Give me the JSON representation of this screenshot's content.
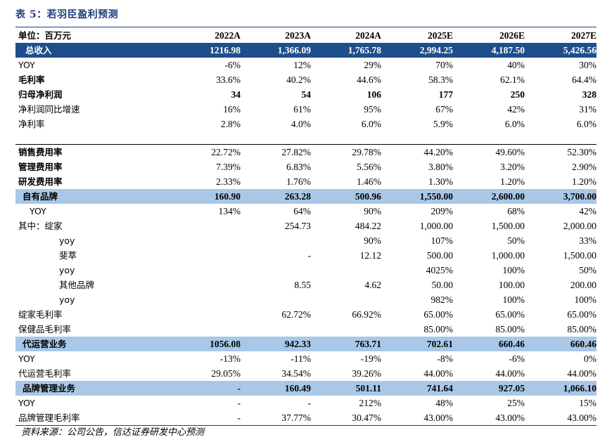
{
  "title": "表 5：若羽臣盈利预测",
  "source": "资料来源：公司公告，信达证券研发中心预测",
  "table": {
    "unit_label": "单位：百万元",
    "columns": [
      "2022A",
      "2023A",
      "2024A",
      "2025E",
      "2026E",
      "2027E"
    ],
    "rows": [
      {
        "style": "dark",
        "indent": 0,
        "label": "总收入",
        "values": [
          "1216.98",
          "1,366.09",
          "1,765.78",
          "2,994.25",
          "4,187.50",
          "5,426.56"
        ]
      },
      {
        "style": "normal",
        "indent": 0,
        "label": "YOY",
        "values": [
          "-6%",
          "12%",
          "29%",
          "70%",
          "40%",
          "30%"
        ]
      },
      {
        "style": "boldlabel",
        "indent": 0,
        "label": "毛利率",
        "values": [
          "33.6%",
          "40.2%",
          "44.6%",
          "58.3%",
          "62.1%",
          "64.4%"
        ]
      },
      {
        "style": "bold",
        "indent": 0,
        "label": "归母净利润",
        "values": [
          "34",
          "54",
          "106",
          "177",
          "250",
          "328"
        ]
      },
      {
        "style": "normal",
        "indent": 0,
        "label": "净利润同比增速",
        "values": [
          "16%",
          "61%",
          "95%",
          "67%",
          "42%",
          "31%"
        ]
      },
      {
        "style": "normal",
        "indent": 0,
        "label": "净利率",
        "values": [
          "2.8%",
          "4.0%",
          "6.0%",
          "5.9%",
          "6.0%",
          "6.0%"
        ]
      },
      {
        "style": "blank",
        "indent": 0,
        "label": "",
        "values": [
          "",
          "",
          "",
          "",
          "",
          ""
        ]
      },
      {
        "style": "boldlabel sec-top",
        "indent": 0,
        "label": "销售费用率",
        "values": [
          "22.72%",
          "27.82%",
          "29.78%",
          "44.20%",
          "49.60%",
          "52.30%"
        ]
      },
      {
        "style": "boldlabel",
        "indent": 0,
        "label": "管理费用率",
        "values": [
          "7.39%",
          "6.83%",
          "5.56%",
          "3.80%",
          "3.20%",
          "2.90%"
        ]
      },
      {
        "style": "boldlabel",
        "indent": 0,
        "label": "研发费用率",
        "values": [
          "2.33%",
          "1.76%",
          "1.46%",
          "1.30%",
          "1.20%",
          "1.20%"
        ]
      },
      {
        "style": "light",
        "indent": 0,
        "label": "自有品牌",
        "values": [
          "160.90",
          "263.28",
          "500.96",
          "1,550.00",
          "2,600.00",
          "3,700.00"
        ]
      },
      {
        "style": "normal",
        "indent": 1,
        "label": "YOY",
        "values": [
          "134%",
          "64%",
          "90%",
          "209%",
          "68%",
          "42%"
        ]
      },
      {
        "style": "normal",
        "indent": 0,
        "label": "其中：绽家",
        "values": [
          "",
          "254.73",
          "484.22",
          "1,000.00",
          "1,500.00",
          "2,000.00"
        ]
      },
      {
        "style": "normal",
        "indent": 2,
        "label": "yoy",
        "values": [
          "",
          "",
          "90%",
          "107%",
          "50%",
          "33%"
        ]
      },
      {
        "style": "normal",
        "indent": 2,
        "label": "斐萃",
        "values": [
          "",
          "-",
          "12.12",
          "500.00",
          "1,000.00",
          "1,500.00"
        ]
      },
      {
        "style": "normal",
        "indent": 2,
        "label": "yoy",
        "values": [
          "",
          "",
          "",
          "4025%",
          "100%",
          "50%"
        ]
      },
      {
        "style": "normal",
        "indent": 2,
        "label": "其他品牌",
        "values": [
          "",
          "8.55",
          "4.62",
          "50.00",
          "100.00",
          "200.00"
        ]
      },
      {
        "style": "normal",
        "indent": 2,
        "label": "yoy",
        "values": [
          "",
          "",
          "",
          "982%",
          "100%",
          "100%"
        ]
      },
      {
        "style": "normal",
        "indent": 0,
        "label": "绽家毛利率",
        "values": [
          "",
          "62.72%",
          "66.92%",
          "65.00%",
          "65.00%",
          "65.00%"
        ]
      },
      {
        "style": "normal",
        "indent": 0,
        "label": "保健品毛利率",
        "values": [
          "",
          "",
          "",
          "85.00%",
          "85.00%",
          "85.00%"
        ]
      },
      {
        "style": "light",
        "indent": 0,
        "label": "代运营业务",
        "values": [
          "1056.08",
          "942.33",
          "763.71",
          "702.61",
          "660.46",
          "660.46"
        ]
      },
      {
        "style": "normal",
        "indent": 0,
        "label": "YOY",
        "values": [
          "-13%",
          "-11%",
          "-19%",
          "-8%",
          "-6%",
          "0%"
        ]
      },
      {
        "style": "normal",
        "indent": 0,
        "label": "代运营毛利率",
        "values": [
          "29.05%",
          "34.54%",
          "39.26%",
          "44.00%",
          "44.00%",
          "44.00%"
        ]
      },
      {
        "style": "light",
        "indent": 0,
        "label": "品牌管理业务",
        "values": [
          "-",
          "160.49",
          "501.11",
          "741.64",
          "927.05",
          "1,066.10"
        ]
      },
      {
        "style": "normal",
        "indent": 0,
        "label": "YOY",
        "values": [
          "-",
          "-",
          "212%",
          "48%",
          "25%",
          "15%"
        ]
      },
      {
        "style": "normal last",
        "indent": 0,
        "label": "品牌管理毛利率",
        "values": [
          "-",
          "37.77%",
          "30.47%",
          "43.00%",
          "43.00%",
          "43.00%"
        ]
      }
    ]
  }
}
